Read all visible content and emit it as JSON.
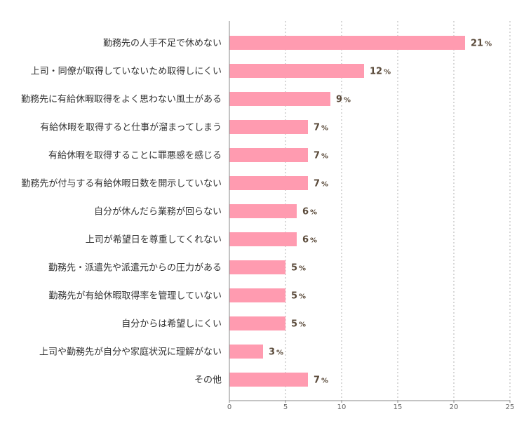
{
  "chart_data": {
    "type": "bar",
    "orientation": "horizontal",
    "title": "",
    "xlabel": "",
    "ylabel": "",
    "xlim": [
      0,
      25
    ],
    "ticks": [
      0,
      5,
      10,
      15,
      20,
      25
    ],
    "grid": true,
    "bar_color": "#ff9bb0",
    "value_suffix": "%",
    "categories": [
      "勤務先の人手不足で休めない",
      "上司・同僚が取得していないため取得しにくい",
      "勤務先に有給休暇取得をよく思わない風土がある",
      "有給休暇を取得すると仕事が溜まってしまう",
      "有給休暇を取得することに罪悪感を感じる",
      "勤務先が付与する有給休暇日数を開示していない",
      "自分が休んだら業務が回らない",
      "上司が希望日を尊重してくれない",
      "勤務先・派遣先や派遣元からの圧力がある",
      "勤務先が有給休暇取得率を管理していない",
      "自分からは希望しにくい",
      "上司や勤務先が自分や家庭状況に理解がない",
      "その他"
    ],
    "values": [
      21,
      12,
      9,
      7,
      7,
      7,
      6,
      6,
      5,
      5,
      5,
      3,
      7
    ]
  }
}
